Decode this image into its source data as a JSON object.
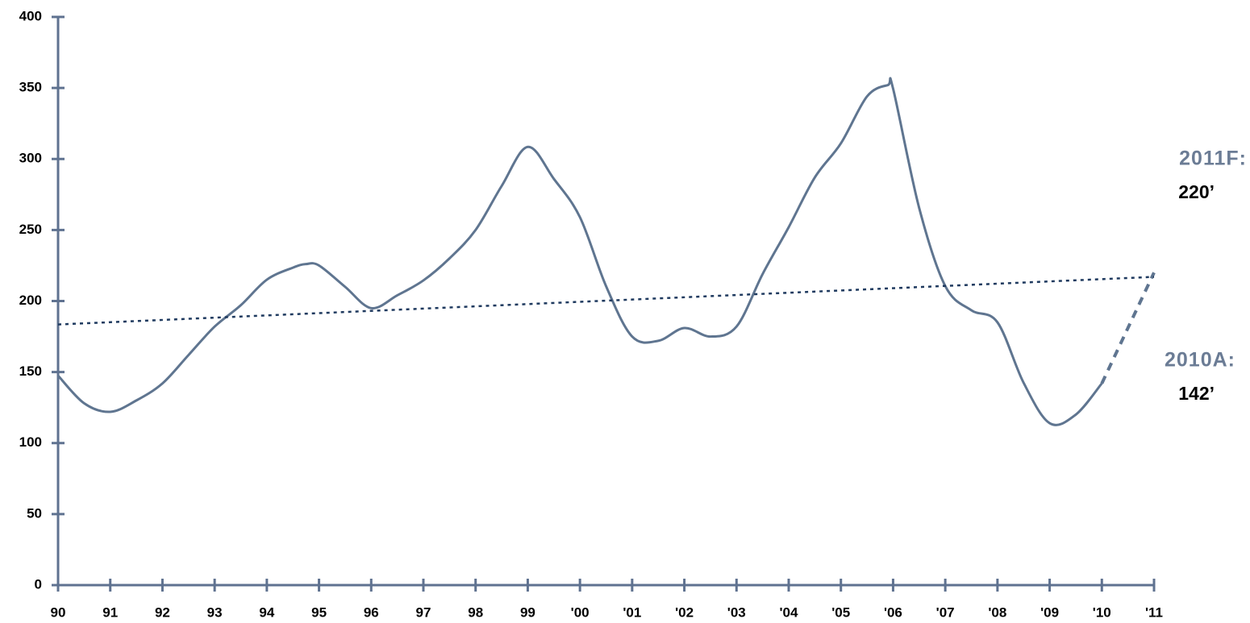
{
  "chart_data": {
    "type": "line",
    "xlim": [
      1990,
      2011
    ],
    "ylim": [
      0,
      400
    ],
    "yticks": [
      0,
      50,
      100,
      150,
      200,
      250,
      300,
      350,
      400
    ],
    "xticks": [
      {
        "value": 1990,
        "label": "90"
      },
      {
        "value": 1991,
        "label": "91"
      },
      {
        "value": 1992,
        "label": "92"
      },
      {
        "value": 1993,
        "label": "93"
      },
      {
        "value": 1994,
        "label": "94"
      },
      {
        "value": 1995,
        "label": "95"
      },
      {
        "value": 1996,
        "label": "96"
      },
      {
        "value": 1997,
        "label": "97"
      },
      {
        "value": 1998,
        "label": "98"
      },
      {
        "value": 1999,
        "label": "99"
      },
      {
        "value": 2000,
        "label": "'00"
      },
      {
        "value": 2001,
        "label": "'01"
      },
      {
        "value": 2002,
        "label": "'02"
      },
      {
        "value": 2003,
        "label": "'03"
      },
      {
        "value": 2004,
        "label": "'04"
      },
      {
        "value": 2005,
        "label": "'05"
      },
      {
        "value": 2006,
        "label": "'06"
      },
      {
        "value": 2007,
        "label": "'07"
      },
      {
        "value": 2008,
        "label": "'08"
      },
      {
        "value": 2009,
        "label": "'09"
      },
      {
        "value": 2010,
        "label": "'10"
      },
      {
        "value": 2011,
        "label": "'11"
      }
    ],
    "axis_color": "#5f7290",
    "series": [
      {
        "color": "#5f7590",
        "style": "solid",
        "x": [
          1990,
          1990.5,
          1991,
          1991.5,
          1992,
          1992.5,
          1993,
          1993.5,
          1994,
          1994.5,
          1994.75,
          1995,
          1995.5,
          1996,
          1996.5,
          1997,
          1997.5,
          1998,
          1998.5,
          1999,
          1999.5,
          2000,
          2000.5,
          2001,
          2001.5,
          2002,
          2002.5,
          2003,
          2003.5,
          2004,
          2004.5,
          2005,
          2005.5,
          2005.9,
          2006,
          2006.5,
          2007,
          2007.5,
          2008,
          2008.5,
          2009,
          2009.5,
          2010
        ],
        "values": [
          147.5,
          128,
          122,
          130,
          142,
          162,
          182,
          197,
          215,
          223.5,
          226,
          225,
          210,
          195,
          204,
          214.5,
          230,
          250,
          281,
          308.5,
          286,
          259,
          210.5,
          175,
          172,
          181,
          175,
          182,
          219,
          252,
          287,
          311,
          344,
          352,
          349.5,
          265.5,
          210.5,
          193.5,
          185,
          142.5,
          114,
          120,
          142
        ]
      },
      {
        "color": "#5f7590",
        "style": "dashed",
        "x": [
          2010,
          2011
        ],
        "values": [
          142,
          220
        ]
      },
      {
        "color": "#1f3a5f",
        "style": "dotted",
        "x": [
          1990,
          2011
        ],
        "values": [
          183.5,
          217
        ]
      }
    ],
    "annotations": [
      {
        "label": "2011F:",
        "text": "220’"
      },
      {
        "label": "2010A:",
        "text": "142’"
      }
    ]
  }
}
